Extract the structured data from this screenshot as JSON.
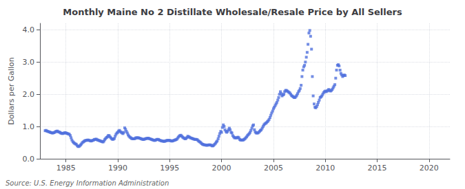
{
  "chart_data": {
    "type": "scatter",
    "title": "Monthly Maine No 2 Distillate Wholesale/Resale Price by All Sellers",
    "ylabel": "Dollars per Gallon",
    "annotations": [
      "Source: U.S. Energy Information Administration"
    ],
    "marker": "square",
    "grid": true,
    "xlim": [
      1982.5,
      2022
    ],
    "ylim": [
      0.0,
      4.2
    ],
    "xticks": [
      1985,
      1990,
      1995,
      2000,
      2005,
      2010,
      2015,
      2020
    ],
    "yticks": [
      {
        "value": 0.0,
        "label": "0.0"
      },
      {
        "value": 1.0,
        "label": "1.0"
      },
      {
        "value": 2.0,
        "label": "2.0"
      },
      {
        "value": 3.0,
        "label": "3.0"
      },
      {
        "value": 4.0,
        "label": "4.0"
      }
    ],
    "x": [
      1983.0,
      1983.08,
      1983.17,
      1983.25,
      1983.33,
      1983.42,
      1983.5,
      1983.58,
      1983.67,
      1983.75,
      1983.83,
      1983.92,
      1984.0,
      1984.08,
      1984.17,
      1984.25,
      1984.33,
      1984.42,
      1984.5,
      1984.58,
      1984.67,
      1984.75,
      1984.83,
      1984.92,
      1985.0,
      1985.08,
      1985.17,
      1985.25,
      1985.33,
      1985.42,
      1985.5,
      1985.58,
      1985.67,
      1985.75,
      1985.83,
      1985.92,
      1986.0,
      1986.08,
      1986.17,
      1986.25,
      1986.33,
      1986.42,
      1986.5,
      1986.58,
      1986.67,
      1986.75,
      1986.83,
      1986.92,
      1987.0,
      1987.08,
      1987.17,
      1987.25,
      1987.33,
      1987.42,
      1987.5,
      1987.58,
      1987.67,
      1987.75,
      1987.83,
      1987.92,
      1988.0,
      1988.08,
      1988.17,
      1988.25,
      1988.33,
      1988.42,
      1988.5,
      1988.58,
      1988.67,
      1988.75,
      1988.83,
      1988.92,
      1989.0,
      1989.08,
      1989.17,
      1989.25,
      1989.33,
      1989.42,
      1989.5,
      1989.58,
      1989.67,
      1989.75,
      1989.83,
      1989.92,
      1990.0,
      1990.08,
      1990.17,
      1990.25,
      1990.33,
      1990.42,
      1990.5,
      1990.58,
      1990.67,
      1990.75,
      1990.83,
      1990.92,
      1991.0,
      1991.08,
      1991.17,
      1991.25,
      1991.33,
      1991.42,
      1991.5,
      1991.58,
      1991.67,
      1991.75,
      1991.83,
      1991.92,
      1992.0,
      1992.08,
      1992.17,
      1992.25,
      1992.33,
      1992.42,
      1992.5,
      1992.58,
      1992.67,
      1992.75,
      1992.83,
      1992.92,
      1993.0,
      1993.08,
      1993.17,
      1993.25,
      1993.33,
      1993.42,
      1993.5,
      1993.58,
      1993.67,
      1993.75,
      1993.83,
      1993.92,
      1994.0,
      1994.08,
      1994.17,
      1994.25,
      1994.33,
      1994.42,
      1994.5,
      1994.58,
      1994.67,
      1994.75,
      1994.83,
      1994.92,
      1995.0,
      1995.08,
      1995.17,
      1995.25,
      1995.33,
      1995.42,
      1995.5,
      1995.58,
      1995.67,
      1995.75,
      1995.83,
      1995.92,
      1996.0,
      1996.08,
      1996.17,
      1996.25,
      1996.33,
      1996.42,
      1996.5,
      1996.58,
      1996.67,
      1996.75,
      1996.83,
      1996.92,
      1997.0,
      1997.08,
      1997.17,
      1997.25,
      1997.33,
      1997.42,
      1997.5,
      1997.58,
      1997.67,
      1997.75,
      1997.83,
      1997.92,
      1998.0,
      1998.08,
      1998.17,
      1998.25,
      1998.33,
      1998.42,
      1998.5,
      1998.58,
      1998.67,
      1998.75,
      1998.83,
      1998.92,
      1999.0,
      1999.08,
      1999.17,
      1999.25,
      1999.33,
      1999.42,
      1999.5,
      1999.58,
      1999.67,
      1999.75,
      1999.83,
      1999.92,
      2000.0,
      2000.08,
      2000.17,
      2000.25,
      2000.33,
      2000.42,
      2000.5,
      2000.58,
      2000.67,
      2000.75,
      2000.83,
      2000.92,
      2001.0,
      2001.08,
      2001.17,
      2001.25,
      2001.33,
      2001.42,
      2001.5,
      2001.58,
      2001.67,
      2001.75,
      2001.83,
      2001.92,
      2002.0,
      2002.08,
      2002.17,
      2002.25,
      2002.33,
      2002.42,
      2002.5,
      2002.58,
      2002.67,
      2002.75,
      2002.83,
      2002.92,
      2003.0,
      2003.08,
      2003.17,
      2003.25,
      2003.33,
      2003.42,
      2003.5,
      2003.58,
      2003.67,
      2003.75,
      2003.83,
      2003.92,
      2004.0,
      2004.08,
      2004.17,
      2004.25,
      2004.33,
      2004.42,
      2004.5,
      2004.58,
      2004.67,
      2004.75,
      2004.83,
      2004.92,
      2005.0,
      2005.08,
      2005.17,
      2005.25,
      2005.33,
      2005.42,
      2005.5,
      2005.58,
      2005.67,
      2005.75,
      2005.83,
      2005.92,
      2006.0,
      2006.08,
      2006.17,
      2006.25,
      2006.33,
      2006.42,
      2006.5,
      2006.58,
      2006.67,
      2006.75,
      2006.83,
      2006.92,
      2007.0,
      2007.08,
      2007.17,
      2007.25,
      2007.33,
      2007.42,
      2007.5,
      2007.58,
      2007.67,
      2007.75,
      2007.83,
      2007.92,
      2008.0,
      2008.08,
      2008.17,
      2008.25,
      2008.33,
      2008.42,
      2008.5,
      2008.58,
      2008.67,
      2008.75,
      2008.83,
      2008.92,
      2009.0,
      2009.08,
      2009.17,
      2009.25,
      2009.33,
      2009.42,
      2009.5,
      2009.58,
      2009.67,
      2009.75,
      2009.83,
      2009.92,
      2010.0,
      2010.08,
      2010.17,
      2010.25,
      2010.33,
      2010.42,
      2010.5,
      2010.58,
      2010.67,
      2010.75,
      2010.83,
      2010.92,
      2011.0,
      2011.08,
      2011.17,
      2011.25,
      2011.33,
      2011.42,
      2011.5,
      2011.58,
      2011.67,
      2011.75,
      2011.83,
      2011.92
    ],
    "values": [
      0.87,
      0.88,
      0.86,
      0.85,
      0.84,
      0.83,
      0.82,
      0.81,
      0.8,
      0.8,
      0.81,
      0.82,
      0.84,
      0.85,
      0.86,
      0.84,
      0.83,
      0.82,
      0.8,
      0.79,
      0.78,
      0.79,
      0.8,
      0.81,
      0.8,
      0.79,
      0.78,
      0.77,
      0.76,
      0.72,
      0.65,
      0.58,
      0.53,
      0.5,
      0.48,
      0.46,
      0.45,
      0.41,
      0.38,
      0.38,
      0.4,
      0.43,
      0.46,
      0.5,
      0.52,
      0.54,
      0.56,
      0.57,
      0.57,
      0.58,
      0.58,
      0.57,
      0.56,
      0.55,
      0.56,
      0.57,
      0.58,
      0.6,
      0.6,
      0.61,
      0.59,
      0.58,
      0.57,
      0.56,
      0.55,
      0.54,
      0.53,
      0.52,
      0.55,
      0.6,
      0.63,
      0.66,
      0.68,
      0.72,
      0.72,
      0.68,
      0.65,
      0.62,
      0.6,
      0.61,
      0.63,
      0.7,
      0.76,
      0.8,
      0.82,
      0.86,
      0.88,
      0.84,
      0.82,
      0.8,
      0.78,
      0.82,
      0.96,
      0.91,
      0.85,
      0.8,
      0.74,
      0.7,
      0.67,
      0.65,
      0.63,
      0.62,
      0.62,
      0.62,
      0.63,
      0.65,
      0.65,
      0.65,
      0.65,
      0.64,
      0.63,
      0.62,
      0.61,
      0.6,
      0.6,
      0.61,
      0.62,
      0.63,
      0.63,
      0.64,
      0.63,
      0.62,
      0.61,
      0.6,
      0.59,
      0.58,
      0.57,
      0.57,
      0.58,
      0.6,
      0.6,
      0.6,
      0.58,
      0.57,
      0.56,
      0.55,
      0.55,
      0.54,
      0.54,
      0.55,
      0.56,
      0.57,
      0.57,
      0.57,
      0.57,
      0.56,
      0.55,
      0.55,
      0.56,
      0.57,
      0.58,
      0.59,
      0.6,
      0.63,
      0.67,
      0.7,
      0.72,
      0.73,
      0.7,
      0.67,
      0.65,
      0.63,
      0.62,
      0.63,
      0.66,
      0.7,
      0.68,
      0.67,
      0.65,
      0.64,
      0.63,
      0.62,
      0.61,
      0.6,
      0.6,
      0.6,
      0.59,
      0.56,
      0.54,
      0.52,
      0.5,
      0.47,
      0.45,
      0.44,
      0.43,
      0.43,
      0.42,
      0.42,
      0.42,
      0.43,
      0.43,
      0.43,
      0.42,
      0.4,
      0.4,
      0.42,
      0.45,
      0.48,
      0.52,
      0.55,
      0.62,
      0.7,
      0.78,
      0.85,
      0.82,
      0.97,
      1.05,
      1.0,
      0.9,
      0.85,
      0.82,
      0.85,
      0.9,
      0.95,
      0.9,
      0.82,
      0.8,
      0.72,
      0.68,
      0.65,
      0.65,
      0.65,
      0.65,
      0.67,
      0.65,
      0.6,
      0.58,
      0.58,
      0.58,
      0.58,
      0.6,
      0.62,
      0.65,
      0.68,
      0.72,
      0.75,
      0.78,
      0.82,
      0.88,
      0.95,
      1.02,
      1.05,
      0.9,
      0.83,
      0.8,
      0.8,
      0.8,
      0.82,
      0.85,
      0.88,
      0.9,
      0.95,
      1.0,
      1.05,
      1.08,
      1.1,
      1.12,
      1.15,
      1.18,
      1.22,
      1.28,
      1.35,
      1.42,
      1.48,
      1.55,
      1.6,
      1.65,
      1.7,
      1.75,
      1.82,
      1.9,
      2.0,
      2.08,
      2.02,
      1.95,
      1.98,
      2.0,
      2.08,
      2.12,
      2.12,
      2.1,
      2.08,
      2.06,
      2.04,
      2.0,
      1.96,
      1.94,
      1.92,
      1.9,
      1.9,
      1.93,
      1.97,
      2.02,
      2.08,
      2.12,
      2.18,
      2.28,
      2.55,
      2.75,
      2.85,
      2.9,
      3.0,
      3.15,
      3.3,
      3.55,
      3.9,
      3.98,
      3.8,
      3.4,
      2.55,
      1.95,
      1.7,
      1.6,
      1.58,
      1.62,
      1.68,
      1.75,
      1.82,
      1.9,
      1.92,
      1.95,
      2.0,
      2.05,
      2.08,
      2.1,
      2.08,
      2.1,
      2.12,
      2.15,
      2.12,
      2.1,
      2.12,
      2.15,
      2.2,
      2.25,
      2.3,
      2.5,
      2.75,
      2.9,
      2.92,
      2.88,
      2.75,
      2.65,
      2.6,
      2.55,
      2.58,
      2.6,
      2.58
    ]
  }
}
